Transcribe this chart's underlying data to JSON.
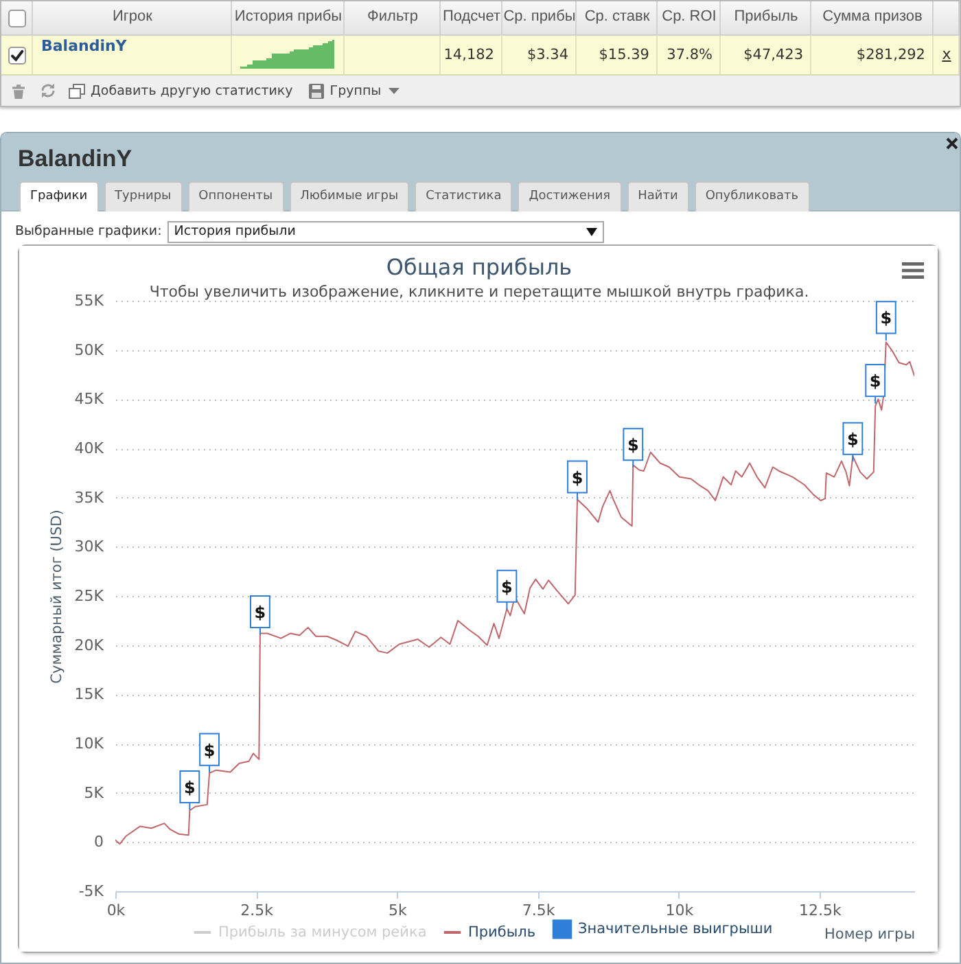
{
  "chart_data": [
    {
      "type": "other",
      "annotations": [
        "Игрок",
        "История прибы",
        "Фильтр",
        "Подсчет",
        "Ср. прибы",
        "Ср. ставк",
        "Ср. ROI",
        "Прибыль",
        "Сумма призов",
        "BalandinY",
        "14,182",
        "$3.34",
        "$15.39",
        "37.8%",
        "$47,423",
        "$281,292",
        "x",
        "Добавить другую статистику",
        "Группы"
      ]
    },
    {
      "type": "line",
      "title": "Общая прибыль",
      "subtitle": "Чтобы увеличить изображение, кликните и перетащите мышкой внутрь графика.",
      "xlabel": "Номер игры",
      "ylabel": "Суммарный итог (USD)",
      "annotations": [
        "BalandinY",
        "Графики",
        "Турниры",
        "Оппоненты",
        "Любимые игры",
        "Статистика",
        "Достижения",
        "Найти",
        "Опубликовать",
        "Выбранные графики:",
        "История прибыли"
      ],
      "x": [
        0,
        80,
        190,
        440,
        640,
        870,
        970,
        1130,
        1300,
        1320,
        1420,
        1630,
        1670,
        1790,
        2040,
        2200,
        2370,
        2450,
        2550,
        2570,
        2700,
        2940,
        3110,
        3270,
        3420,
        3560,
        3760,
        3930,
        4130,
        4260,
        4460,
        4670,
        4830,
        5040,
        5370,
        5570,
        5780,
        5940,
        6080,
        6270,
        6440,
        6600,
        6720,
        6810,
        6950,
        7010,
        7090,
        7260,
        7360,
        7460,
        7590,
        7690,
        7830,
        8040,
        8160,
        8200,
        8370,
        8570,
        8650,
        8780,
        8840,
        8980,
        9170,
        9190,
        9300,
        9380,
        9500,
        9670,
        9830,
        10010,
        10220,
        10380,
        10520,
        10650,
        10790,
        10930,
        11010,
        11120,
        11260,
        11390,
        11530,
        11670,
        11780,
        12020,
        12230,
        12390,
        12520,
        12600,
        12620,
        12760,
        12890,
        12970,
        13030,
        13090,
        13220,
        13340,
        13460,
        13490,
        13540,
        13600,
        13640,
        13680,
        13790,
        13910,
        14040,
        14100,
        14182
      ],
      "series": [
        {
          "name": "Прибыль за минусом рейка",
          "color": "#cccccc",
          "values": [
            null,
            null,
            null,
            null,
            null,
            null,
            null,
            null,
            null,
            null,
            null,
            null,
            null,
            null,
            null,
            null,
            null,
            null,
            null,
            null,
            null,
            null,
            null,
            null,
            null,
            null,
            null,
            null,
            null,
            null,
            null,
            null,
            null,
            null,
            null,
            null,
            null,
            null,
            null,
            null,
            null,
            null,
            null,
            null,
            null,
            null,
            null,
            null,
            null,
            null,
            null,
            null,
            null,
            null,
            null,
            null,
            null,
            null,
            null,
            null,
            null,
            null,
            null,
            null,
            null,
            null,
            null,
            null,
            null,
            null,
            null,
            null,
            null,
            null,
            null,
            null,
            null,
            null,
            null,
            null,
            null,
            null,
            null,
            null,
            null,
            null,
            null,
            null,
            null,
            null,
            null,
            null,
            null,
            null,
            null,
            null,
            null,
            null,
            null,
            null,
            null,
            null,
            null,
            null,
            null,
            null,
            null
          ]
        },
        {
          "name": "Прибыль",
          "color": "#c0676b",
          "values": [
            200,
            -200,
            600,
            1600,
            1400,
            1900,
            1300,
            800,
            700,
            3200,
            3600,
            3800,
            7000,
            7300,
            7100,
            8000,
            8200,
            9000,
            8400,
            21200,
            21200,
            20700,
            21200,
            21000,
            21800,
            20900,
            20900,
            20500,
            19900,
            21400,
            20900,
            19400,
            19200,
            20100,
            20600,
            19800,
            20800,
            20100,
            22500,
            21600,
            20900,
            20000,
            22200,
            20700,
            23700,
            23000,
            24900,
            23200,
            25800,
            26700,
            25700,
            26600,
            25600,
            24200,
            25100,
            34800,
            33900,
            32500,
            34100,
            35700,
            34800,
            33000,
            32100,
            38300,
            37800,
            37700,
            39600,
            38500,
            38100,
            37100,
            36900,
            36200,
            35700,
            34700,
            37100,
            36300,
            37700,
            37100,
            38500,
            37100,
            36000,
            38100,
            37700,
            37100,
            36300,
            35300,
            34700,
            34900,
            37500,
            37100,
            38700,
            37600,
            36200,
            39200,
            37600,
            36900,
            37600,
            44300,
            45000,
            43900,
            45500,
            50800,
            49900,
            48700,
            48500,
            48800,
            47400
          ]
        },
        {
          "type": "scatter",
          "name": "Значительные выигрыши",
          "color": "#2f7ed8",
          "x": [
            1320,
            1670,
            2570,
            6950,
            8200,
            9190,
            13090,
            13490,
            13680
          ],
          "values": [
            5600,
            9400,
            23400,
            26000,
            37100,
            40400,
            41000,
            46900,
            53300
          ],
          "value_labels": [
            "$",
            "$",
            "$",
            "$",
            "$",
            "$",
            "$",
            "$",
            "$"
          ]
        }
      ],
      "xlim": [
        0,
        14182
      ],
      "ylim": [
        -5000,
        55000
      ],
      "xticks": [
        {
          "value": 0,
          "label": "0k"
        },
        {
          "value": 2500,
          "label": "2.5k"
        },
        {
          "value": 5000,
          "label": "5k"
        },
        {
          "value": 7500,
          "label": "7.5k"
        },
        {
          "value": 10000,
          "label": "10k"
        },
        {
          "value": 12500,
          "label": "12.5k"
        }
      ],
      "yticks": [
        {
          "value": -5000,
          "label": "-5K"
        },
        0,
        {
          "value": 5000,
          "label": "5K"
        },
        {
          "value": 10000,
          "label": "10K"
        },
        {
          "value": 15000,
          "label": "15K"
        },
        {
          "value": 20000,
          "label": "20K"
        },
        {
          "value": 25000,
          "label": "25K"
        },
        {
          "value": 30000,
          "label": "30K"
        },
        {
          "value": 35000,
          "label": "35K"
        },
        {
          "value": 40000,
          "label": "40K"
        },
        {
          "value": 45000,
          "label": "45K"
        },
        {
          "value": 50000,
          "label": "50K"
        },
        {
          "value": 55000,
          "label": "55K"
        }
      ],
      "grid": "y",
      "legend": "bottom"
    }
  ]
}
